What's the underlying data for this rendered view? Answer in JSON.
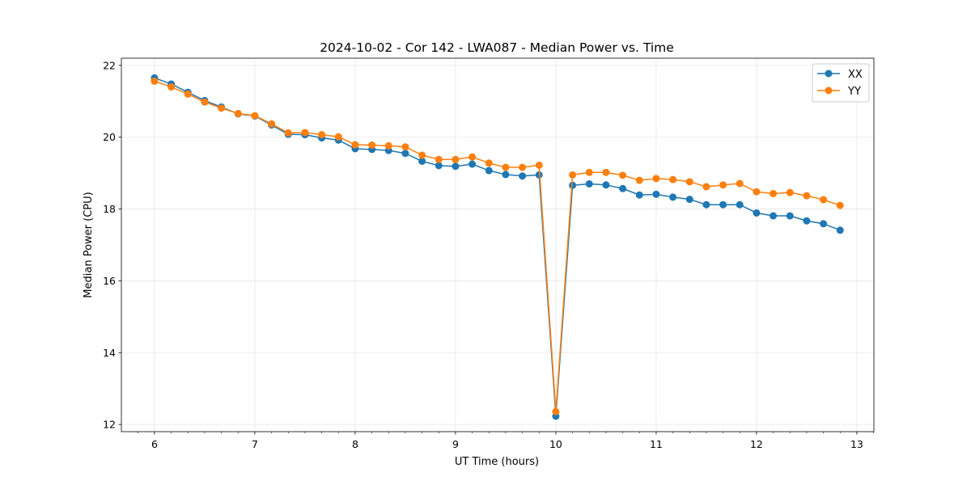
{
  "chart_data": {
    "type": "line",
    "title": "2024-10-02 - Cor 142 - LWA087 - Median Power vs. Time",
    "xlabel": "UT Time (hours)",
    "ylabel": "Median Power (CPU)",
    "xlim": [
      5.67,
      13.17
    ],
    "ylim": [
      11.8,
      22.2
    ],
    "xticks": [
      6,
      7,
      8,
      9,
      10,
      11,
      12,
      13
    ],
    "xtick_labels": [
      "6",
      "7",
      "8",
      "9",
      "10",
      "11",
      "12",
      "13"
    ],
    "yticks": [
      12,
      14,
      16,
      18,
      20,
      22
    ],
    "ytick_labels": [
      "12",
      "14",
      "16",
      "18",
      "20",
      "22"
    ],
    "grid": true,
    "legend_position": "top-right",
    "x": [
      6.0,
      6.1667,
      6.3333,
      6.5,
      6.6667,
      6.8333,
      7.0,
      7.1667,
      7.3333,
      7.5,
      7.6667,
      7.8333,
      8.0,
      8.1667,
      8.3333,
      8.5,
      8.6667,
      8.8333,
      9.0,
      9.1667,
      9.3333,
      9.5,
      9.6667,
      9.8333,
      10.0,
      10.1667,
      10.3333,
      10.5,
      10.6667,
      10.8333,
      11.0,
      11.1667,
      11.3333,
      11.5,
      11.6667,
      11.8333,
      12.0,
      12.1667,
      12.3333,
      12.5,
      12.6667,
      12.8333
    ],
    "series": [
      {
        "name": "XX",
        "color": "#1f77b4",
        "values": [
          21.65,
          21.48,
          21.25,
          21.02,
          20.84,
          20.65,
          20.59,
          20.34,
          20.08,
          20.07,
          19.98,
          19.92,
          19.68,
          19.66,
          19.63,
          19.55,
          19.33,
          19.21,
          19.19,
          19.25,
          19.07,
          18.96,
          18.92,
          18.95,
          12.23,
          18.66,
          18.7,
          18.67,
          18.57,
          18.39,
          18.41,
          18.33,
          18.27,
          18.12,
          18.12,
          18.12,
          17.89,
          17.81,
          17.81,
          17.67,
          17.59,
          17.41
        ]
      },
      {
        "name": "YY",
        "color": "#ff7f0e",
        "values": [
          21.56,
          21.4,
          21.2,
          20.98,
          20.81,
          20.66,
          20.6,
          20.37,
          20.12,
          20.13,
          20.07,
          20.01,
          19.79,
          19.78,
          19.76,
          19.73,
          19.5,
          19.38,
          19.38,
          19.45,
          19.28,
          19.16,
          19.16,
          19.22,
          12.36,
          18.95,
          19.02,
          19.02,
          18.94,
          18.8,
          18.85,
          18.82,
          18.76,
          18.62,
          18.67,
          18.71,
          18.48,
          18.43,
          18.46,
          18.37,
          18.26,
          18.1
        ]
      }
    ]
  }
}
